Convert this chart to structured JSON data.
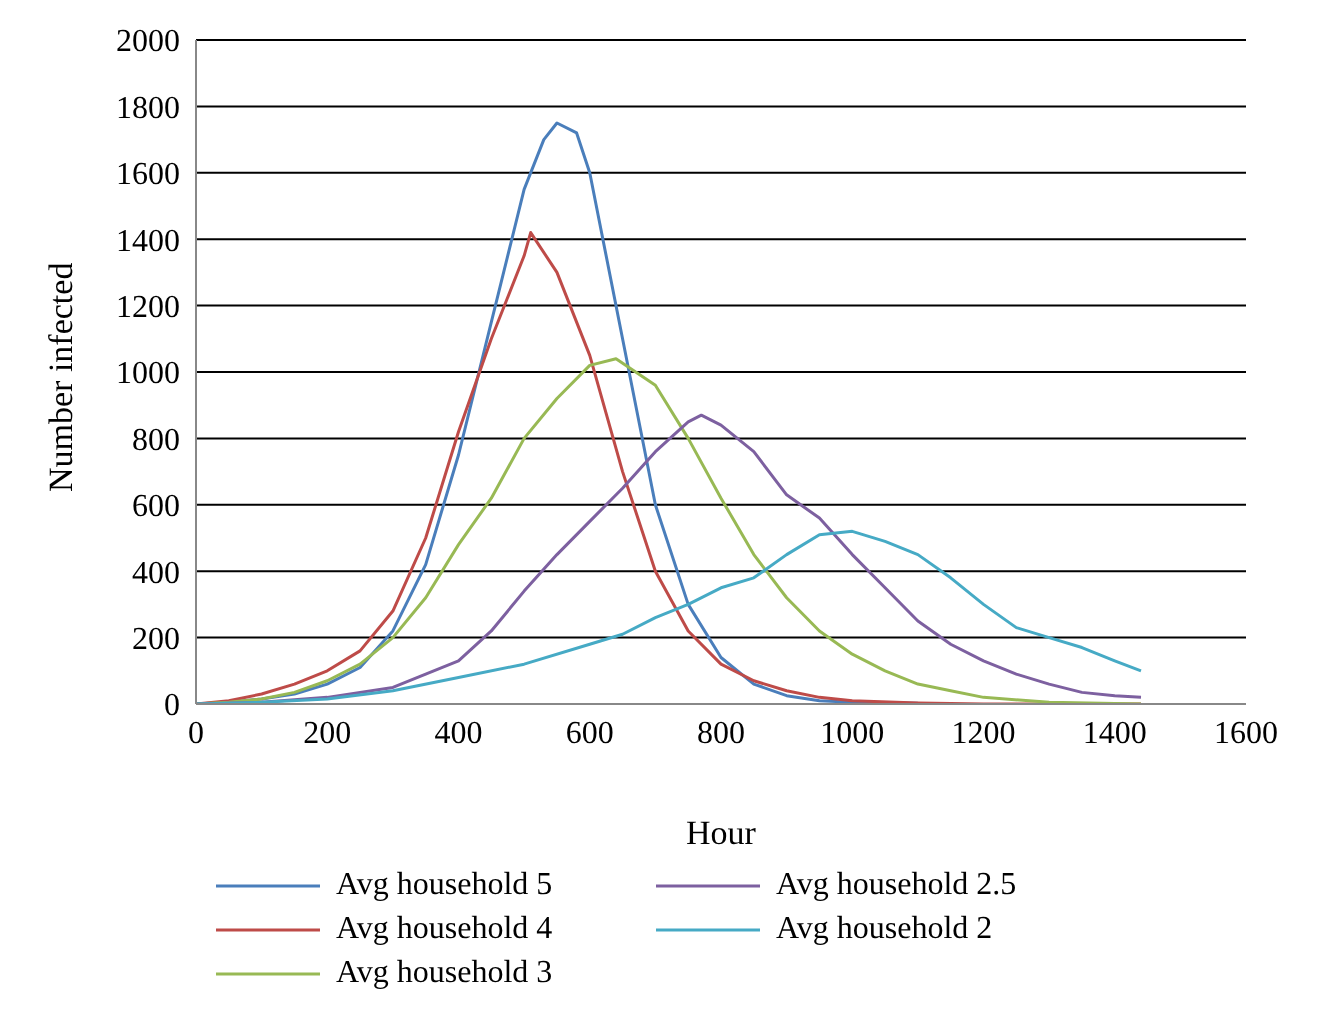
{
  "chart_data": {
    "type": "line",
    "xlabel": "Hour",
    "ylabel": "Number infected",
    "xlim": [
      0,
      1600
    ],
    "xticks": [
      0,
      200,
      400,
      600,
      800,
      1000,
      1200,
      1400,
      1600
    ],
    "ylim": [
      0,
      2000
    ],
    "yticks": [
      0,
      200,
      400,
      600,
      800,
      1000,
      1200,
      1400,
      1600,
      1800,
      2000
    ],
    "grid": "y",
    "legend": "bottom",
    "marker": "none",
    "line_style": "solid",
    "series": [
      {
        "name": "Avg household 5",
        "color": "#4a7ebb",
        "x": [
          0,
          50,
          100,
          150,
          200,
          250,
          300,
          350,
          400,
          450,
          500,
          530,
          550,
          580,
          600,
          650,
          700,
          750,
          800,
          850,
          900,
          950,
          1000,
          1100
        ],
        "values": [
          0,
          5,
          15,
          30,
          60,
          110,
          220,
          420,
          750,
          1150,
          1550,
          1700,
          1750,
          1720,
          1600,
          1100,
          600,
          300,
          140,
          60,
          25,
          10,
          5,
          2
        ]
      },
      {
        "name": "Avg household 4",
        "color": "#be4b48",
        "x": [
          0,
          50,
          100,
          150,
          200,
          250,
          300,
          350,
          400,
          450,
          500,
          510,
          550,
          600,
          650,
          700,
          750,
          800,
          850,
          900,
          950,
          1000,
          1100,
          1200,
          1440
        ],
        "values": [
          0,
          10,
          30,
          60,
          100,
          160,
          280,
          500,
          820,
          1100,
          1350,
          1420,
          1300,
          1050,
          700,
          400,
          220,
          120,
          70,
          40,
          20,
          10,
          3,
          0,
          0
        ]
      },
      {
        "name": "Avg household 3",
        "color": "#98b954",
        "x": [
          0,
          50,
          100,
          150,
          200,
          250,
          300,
          350,
          400,
          450,
          500,
          550,
          600,
          640,
          700,
          750,
          800,
          850,
          900,
          950,
          1000,
          1050,
          1100,
          1150,
          1200,
          1300,
          1440
        ],
        "values": [
          0,
          5,
          15,
          35,
          70,
          120,
          200,
          320,
          480,
          620,
          800,
          920,
          1020,
          1040,
          960,
          800,
          620,
          450,
          320,
          220,
          150,
          100,
          60,
          40,
          20,
          5,
          0
        ]
      },
      {
        "name": "Avg household 2.5",
        "color": "#7d60a0",
        "x": [
          0,
          100,
          200,
          300,
          350,
          400,
          450,
          500,
          550,
          600,
          650,
          700,
          750,
          770,
          800,
          850,
          900,
          950,
          1000,
          1050,
          1100,
          1150,
          1200,
          1250,
          1300,
          1350,
          1400,
          1440
        ],
        "values": [
          0,
          5,
          20,
          50,
          90,
          130,
          220,
          340,
          450,
          550,
          650,
          760,
          850,
          870,
          840,
          760,
          630,
          560,
          450,
          350,
          250,
          180,
          130,
          90,
          60,
          35,
          25,
          20
        ]
      },
      {
        "name": "Avg household 2",
        "color": "#46aac5",
        "x": [
          0,
          100,
          200,
          300,
          400,
          500,
          600,
          650,
          700,
          750,
          800,
          850,
          900,
          950,
          1000,
          1050,
          1100,
          1150,
          1200,
          1250,
          1300,
          1350,
          1400,
          1440
        ],
        "values": [
          0,
          5,
          15,
          40,
          80,
          120,
          180,
          210,
          260,
          300,
          350,
          380,
          450,
          510,
          520,
          490,
          450,
          380,
          300,
          230,
          200,
          170,
          130,
          100
        ]
      }
    ]
  }
}
